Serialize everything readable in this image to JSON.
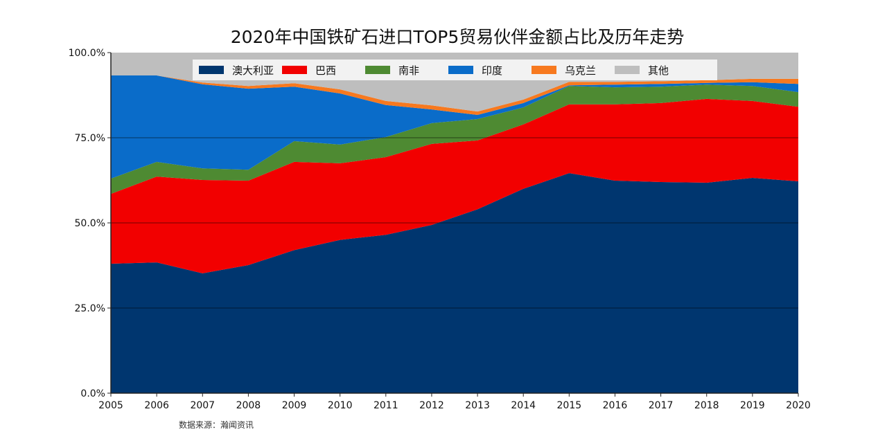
{
  "chart_data": {
    "type": "area",
    "stacked": true,
    "title": "2020年中国铁矿石进口TOP5贸易伙伴金额占比及历年走势",
    "source": "数据来源：瀚闻资讯",
    "xlabel": "",
    "ylabel": "",
    "ylim": [
      0,
      100
    ],
    "yticks": [
      "0.0%",
      "25.0%",
      "50.0%",
      "75.0%",
      "100.0%"
    ],
    "grid": "horizontal at 25/50/75",
    "legend_position": "top",
    "categories": [
      "2005",
      "2006",
      "2007",
      "2008",
      "2009",
      "2010",
      "2011",
      "2012",
      "2013",
      "2014",
      "2015",
      "2016",
      "2017",
      "2018",
      "2019",
      "2020"
    ],
    "series": [
      {
        "name": "澳大利亚",
        "color": "#00366f",
        "values": [
          38,
          38.4,
          35.2,
          37.6,
          42,
          45,
          46.5,
          49.4,
          54,
          60,
          64.6,
          62.4,
          62,
          61.8,
          63.2,
          62.2
        ]
      },
      {
        "name": "巴西",
        "color": "#f20000",
        "values": [
          20.5,
          25.2,
          27.4,
          24.8,
          25.9,
          22.5,
          22.8,
          23.8,
          20.2,
          18.9,
          20.2,
          22.4,
          23.2,
          24.6,
          22.6,
          21.9
        ]
      },
      {
        "name": "南非",
        "color": "#4e8a32",
        "values": [
          4.5,
          4.3,
          3.4,
          3.2,
          6.1,
          5.5,
          5.9,
          6.1,
          6.3,
          5,
          5.4,
          5,
          4.8,
          4.2,
          4.4,
          4.3
        ]
      },
      {
        "name": "印度",
        "color": "#0a6cc9",
        "values": [
          30.3,
          25.4,
          24.7,
          23.8,
          16,
          15,
          9.4,
          4,
          1.2,
          1.3,
          0.2,
          0.8,
          0.8,
          0.5,
          1.1,
          2.4
        ]
      },
      {
        "name": "乌克兰",
        "color": "#f7791f",
        "values": [
          0,
          0,
          0.5,
          0.8,
          1,
          1.2,
          1.2,
          1.2,
          1,
          1,
          1,
          0.8,
          0.8,
          0.8,
          1,
          1.5
        ]
      },
      {
        "name": "其他",
        "color": "#bebebe",
        "values": [
          6.7,
          6.7,
          8.8,
          9.8,
          9,
          10.8,
          14.2,
          15.5,
          17.3,
          13.8,
          8.6,
          8.6,
          8.4,
          8.1,
          7.7,
          7.7
        ]
      }
    ]
  }
}
